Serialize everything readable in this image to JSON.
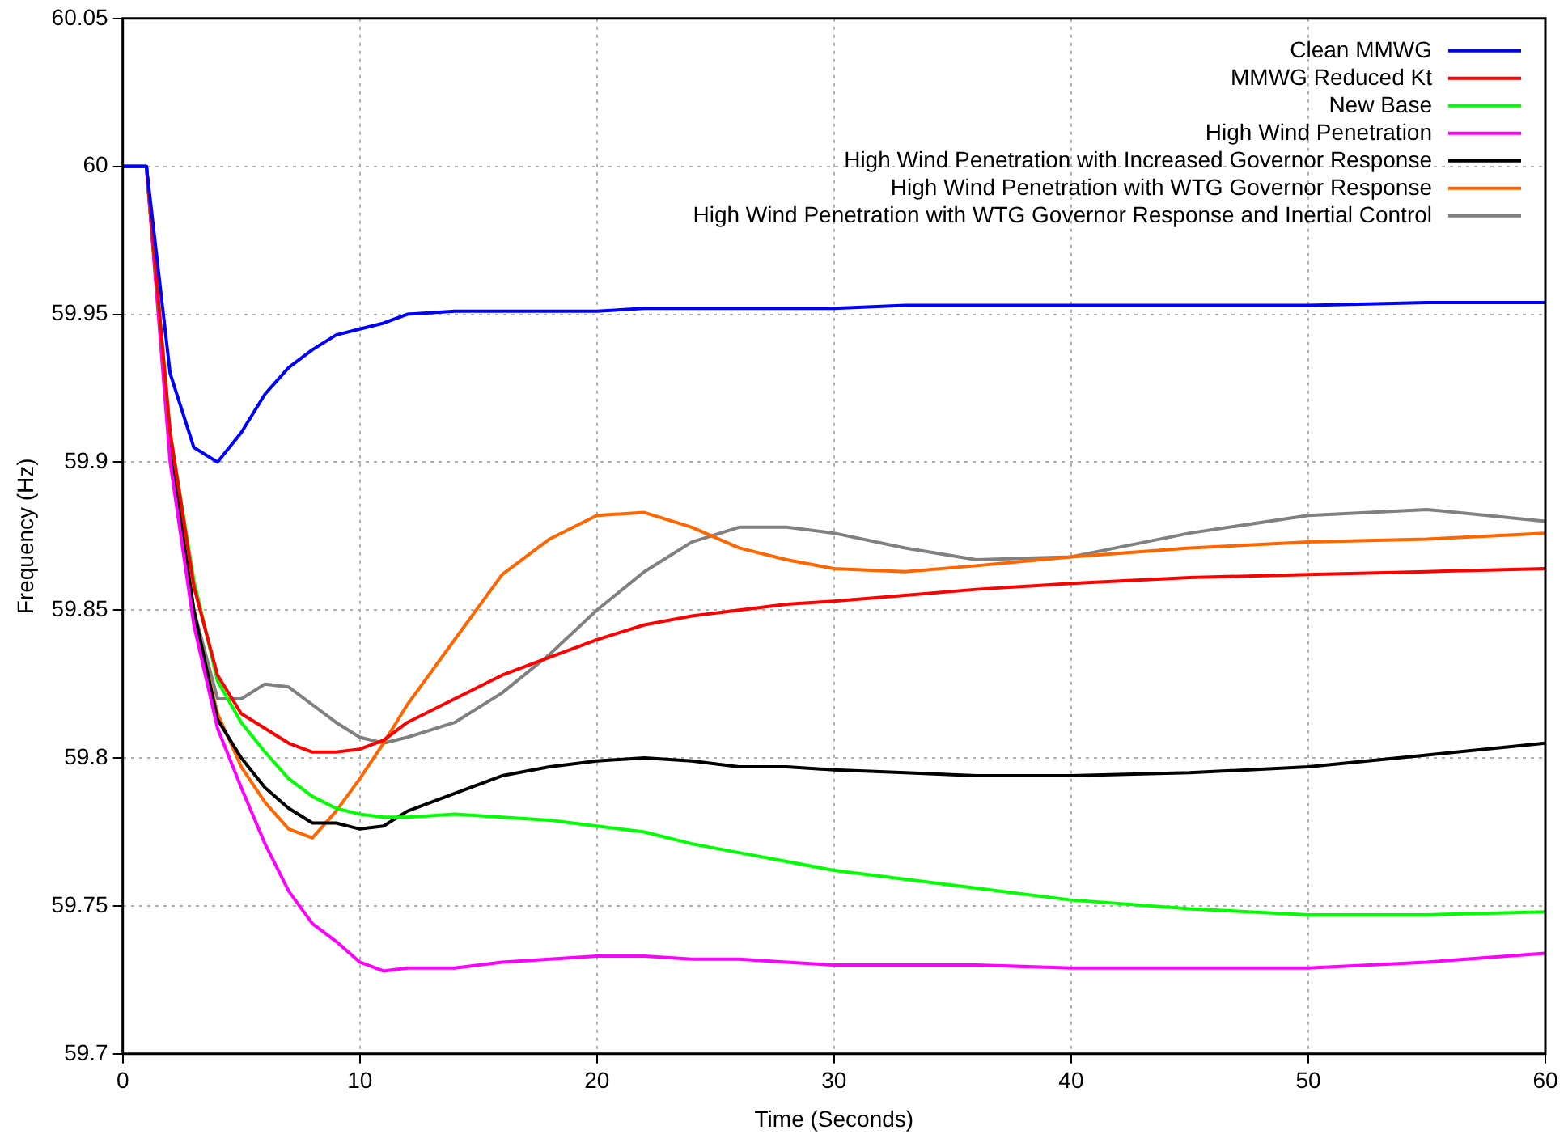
{
  "chart_data": {
    "type": "line",
    "xlabel": "Time (Seconds)",
    "ylabel": "Frequency (Hz)",
    "x": [
      0,
      1,
      2,
      3,
      4,
      5,
      6,
      7,
      8,
      9,
      10,
      11,
      12,
      14,
      16,
      18,
      20,
      22,
      24,
      26,
      28,
      30,
      33,
      36,
      40,
      45,
      50,
      55,
      60
    ],
    "xlim": [
      0,
      60
    ],
    "xticks": [
      0,
      10,
      20,
      30,
      40,
      50,
      60
    ],
    "ylim": [
      59.7,
      60.05
    ],
    "yticks": [
      59.7,
      59.75,
      59.8,
      59.85,
      59.9,
      59.95,
      60,
      60.05
    ],
    "grid": true,
    "legend": "top right",
    "line_style": "solid",
    "series": [
      {
        "name": "Clean MMWG",
        "color": "#0000ff",
        "values": [
          60,
          60,
          59.93,
          59.905,
          59.9,
          59.91,
          59.923,
          59.932,
          59.938,
          59.943,
          59.945,
          59.947,
          59.95,
          59.951,
          59.951,
          59.951,
          59.951,
          59.952,
          59.952,
          59.952,
          59.952,
          59.952,
          59.953,
          59.953,
          59.953,
          59.953,
          59.953,
          59.954,
          59.954
        ]
      },
      {
        "name": "MMWG Reduced Kt",
        "color": "#ff0000",
        "values": [
          60,
          60,
          59.91,
          59.858,
          59.828,
          59.815,
          59.81,
          59.805,
          59.802,
          59.802,
          59.803,
          59.806,
          59.812,
          59.82,
          59.828,
          59.834,
          59.84,
          59.845,
          59.848,
          59.85,
          59.852,
          59.853,
          59.855,
          59.857,
          59.859,
          59.861,
          59.862,
          59.863,
          59.864
        ]
      },
      {
        "name": "New Base",
        "color": "#00ff00",
        "values": [
          60,
          60,
          59.91,
          59.86,
          59.826,
          59.812,
          59.802,
          59.793,
          59.787,
          59.783,
          59.781,
          59.78,
          59.78,
          59.781,
          59.78,
          59.779,
          59.777,
          59.775,
          59.771,
          59.768,
          59.765,
          59.762,
          59.759,
          59.756,
          59.752,
          59.749,
          59.747,
          59.747,
          59.748
        ]
      },
      {
        "name": "High Wind Penetration",
        "color": "#ff00ff",
        "values": [
          60,
          60,
          59.9,
          59.845,
          59.81,
          59.79,
          59.771,
          59.755,
          59.744,
          59.738,
          59.731,
          59.728,
          59.729,
          59.729,
          59.731,
          59.732,
          59.733,
          59.733,
          59.732,
          59.732,
          59.731,
          59.73,
          59.73,
          59.73,
          59.729,
          59.729,
          59.729,
          59.731,
          59.734
        ]
      },
      {
        "name": "High Wind Penetration with Increased Governor Response",
        "color": "#000000",
        "values": [
          60,
          60,
          59.905,
          59.85,
          59.813,
          59.8,
          59.79,
          59.783,
          59.778,
          59.778,
          59.776,
          59.777,
          59.782,
          59.788,
          59.794,
          59.797,
          59.799,
          59.8,
          59.799,
          59.797,
          59.797,
          59.796,
          59.795,
          59.794,
          59.794,
          59.795,
          59.797,
          59.801,
          59.805
        ]
      },
      {
        "name": "High Wind Penetration with WTG Governor Response",
        "color": "#ff6600",
        "values": [
          null,
          null,
          59.905,
          59.848,
          59.815,
          59.797,
          59.785,
          59.776,
          59.773,
          59.782,
          59.793,
          59.805,
          59.818,
          59.84,
          59.862,
          59.874,
          59.882,
          59.883,
          59.878,
          59.871,
          59.867,
          59.864,
          59.863,
          59.865,
          59.868,
          59.871,
          59.873,
          59.874,
          59.876
        ]
      },
      {
        "name": "High Wind Penetration with WTG Governor Response and Inertial Control",
        "color": "#808080",
        "values": [
          60,
          60,
          59.905,
          59.85,
          59.82,
          59.82,
          59.825,
          59.824,
          59.818,
          59.812,
          59.807,
          59.805,
          59.807,
          59.812,
          59.822,
          59.835,
          59.85,
          59.863,
          59.873,
          59.878,
          59.878,
          59.876,
          59.871,
          59.867,
          59.868,
          59.876,
          59.882,
          59.884,
          59.88
        ]
      }
    ]
  }
}
